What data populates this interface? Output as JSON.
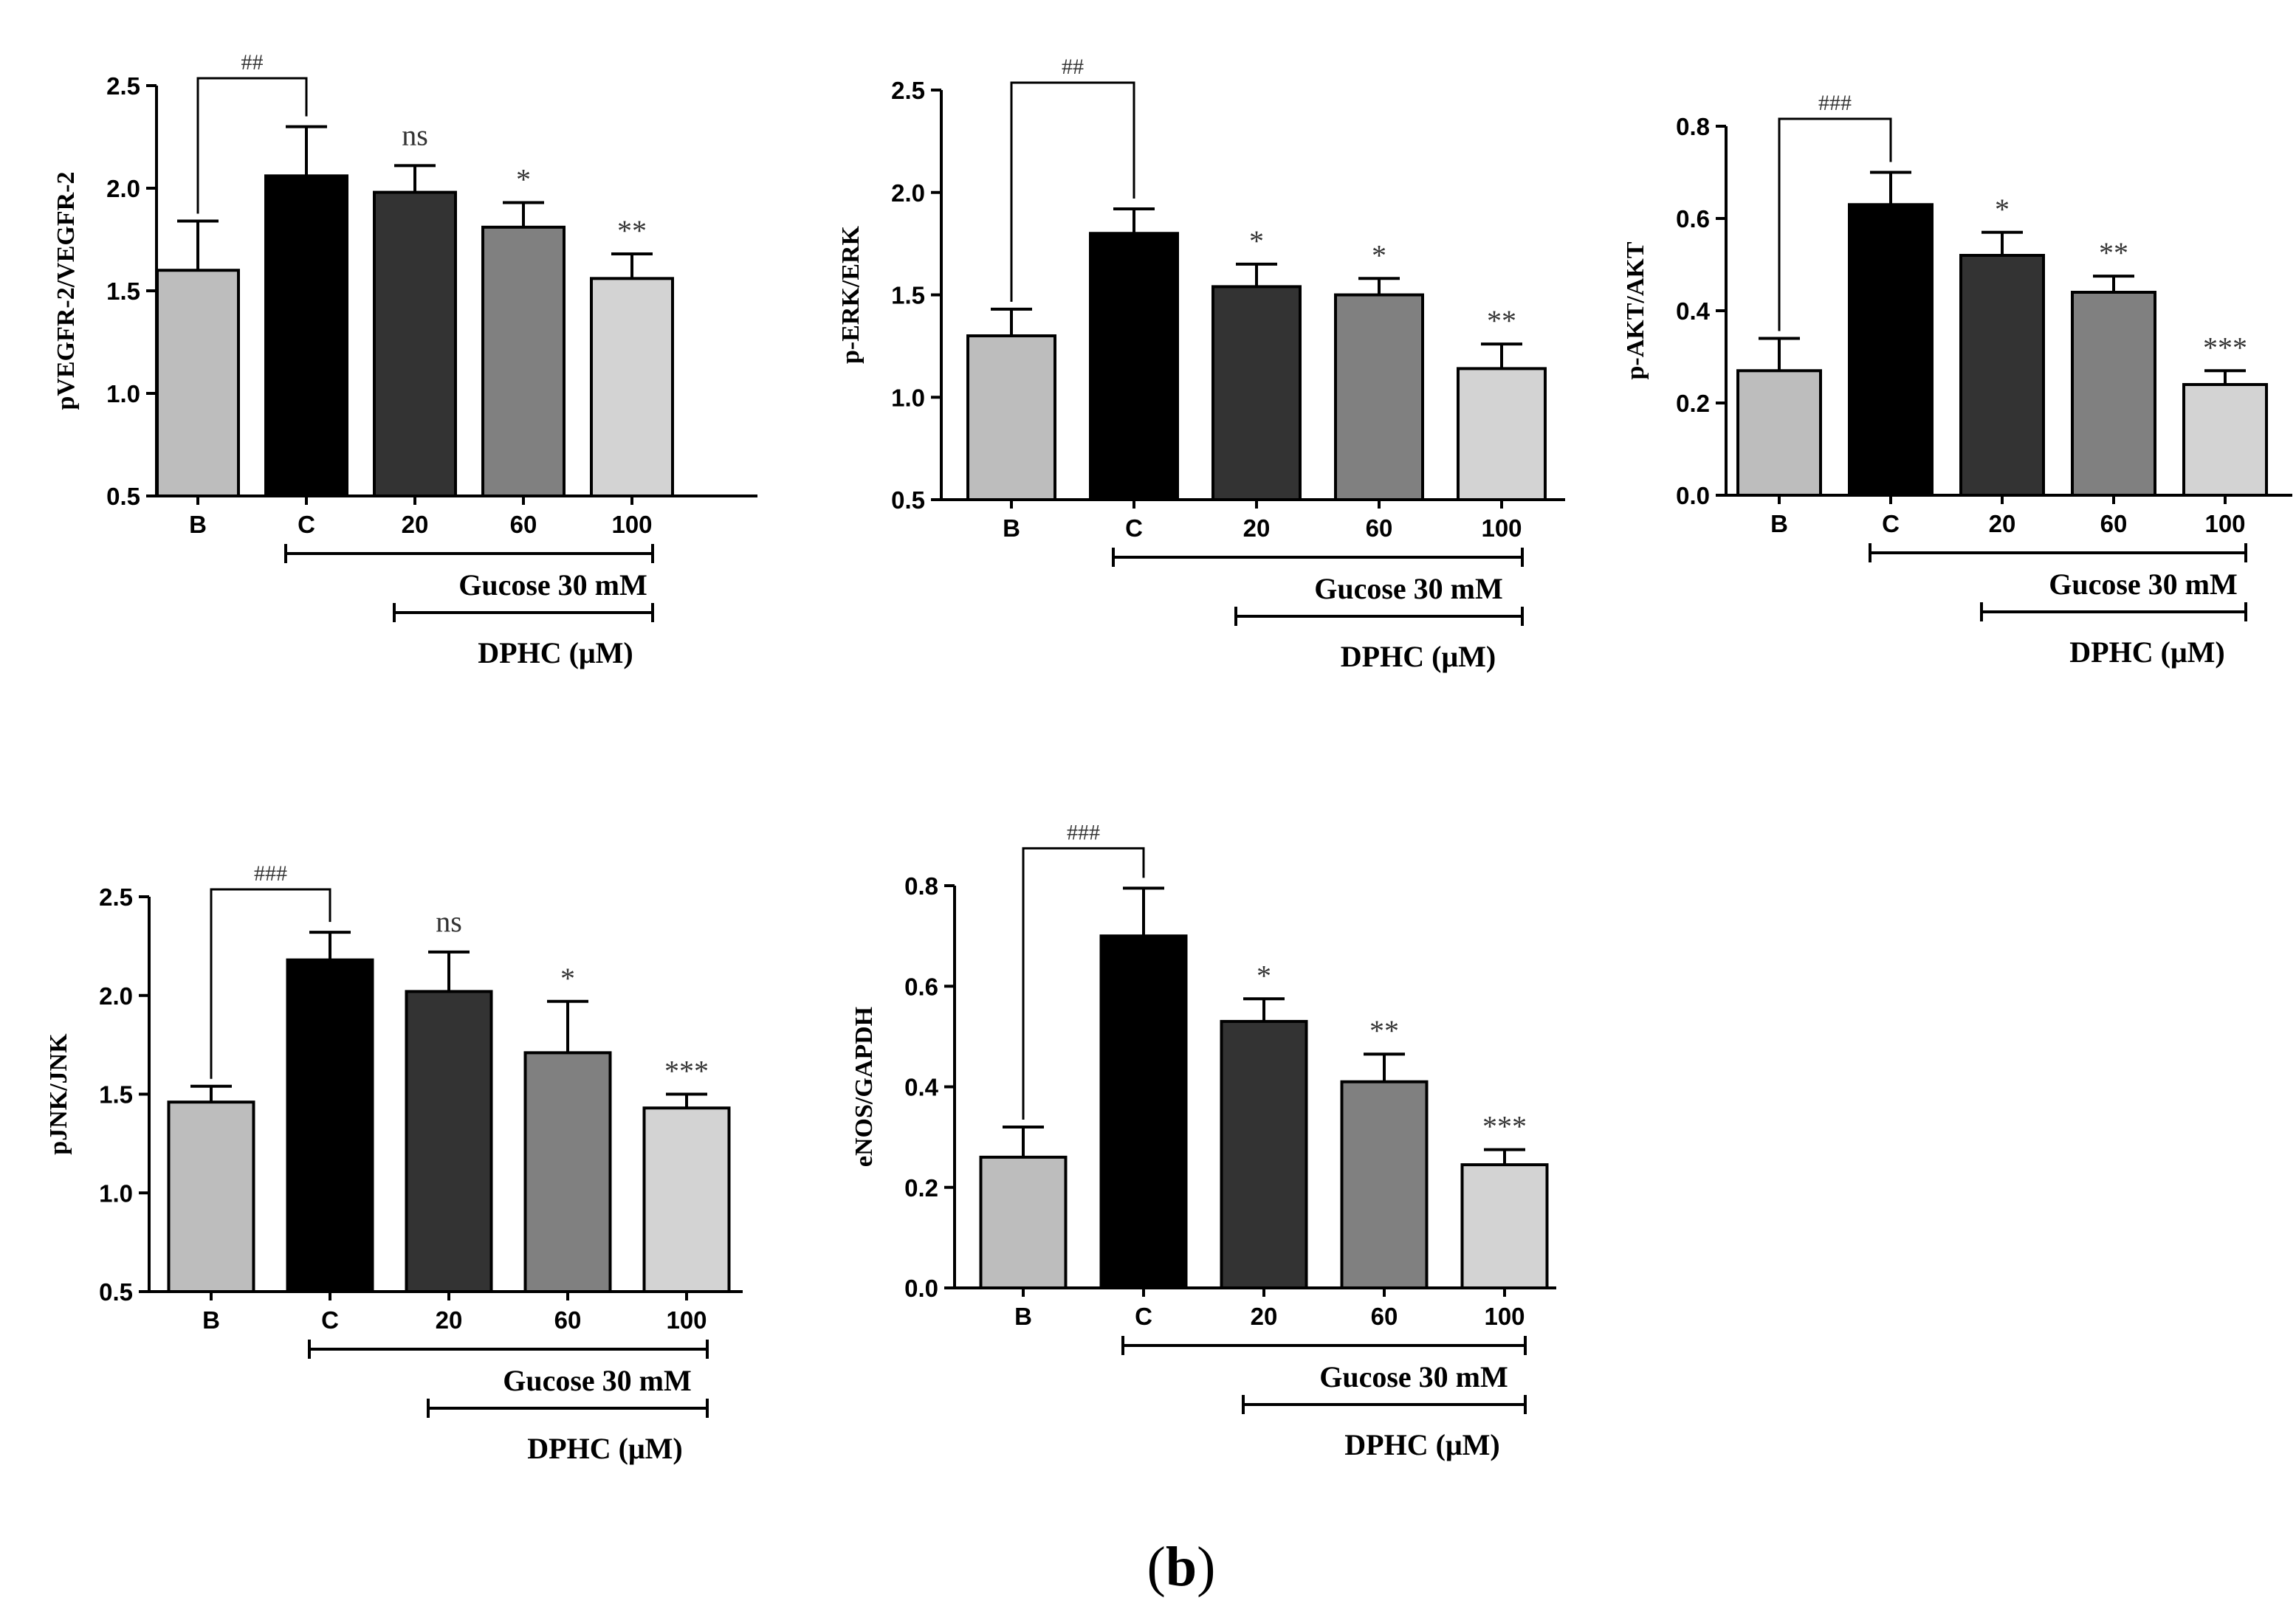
{
  "caption": {
    "open": "(",
    "letter": "b",
    "close": ")"
  },
  "chart_data": [
    {
      "type": "bar",
      "panel": "pVEGFR-2",
      "ylabel": "pVEGFR-2/VEGFR-2",
      "ylim": [
        0.5,
        2.5
      ],
      "yticks": [
        "0.5",
        "1.0",
        "1.5",
        "2.0",
        "2.5"
      ],
      "categories": [
        "B",
        "C",
        "20",
        "60",
        "100"
      ],
      "values": [
        1.6,
        2.06,
        1.98,
        1.81,
        1.56
      ],
      "errors": [
        0.24,
        0.24,
        0.13,
        0.12,
        0.12
      ],
      "bar_colors": [
        "#bdbdbd",
        "#000000",
        "#333333",
        "#808080",
        "#d3d3d3"
      ],
      "significance": [
        "",
        "",
        "ns",
        "*",
        "**"
      ],
      "bracket_label": "##",
      "group_labels": [
        "Gucose 30 mM",
        "DPHC (μM)"
      ]
    },
    {
      "type": "bar",
      "panel": "p-ERK",
      "ylabel": "p-ERK/ERK",
      "ylim": [
        0.5,
        2.5
      ],
      "yticks": [
        "0.5",
        "1.0",
        "1.5",
        "2.0",
        "2.5"
      ],
      "categories": [
        "B",
        "C",
        "20",
        "60",
        "100"
      ],
      "values": [
        1.3,
        1.8,
        1.54,
        1.5,
        1.14
      ],
      "errors": [
        0.13,
        0.12,
        0.11,
        0.08,
        0.12
      ],
      "bar_colors": [
        "#bdbdbd",
        "#000000",
        "#333333",
        "#808080",
        "#d3d3d3"
      ],
      "significance": [
        "",
        "",
        "*",
        "*",
        "**"
      ],
      "bracket_label": "##",
      "group_labels": [
        "Gucose 30 mM",
        "DPHC (μM)"
      ]
    },
    {
      "type": "bar",
      "panel": "p-AKT",
      "ylabel": "p-AKT/AKT",
      "ylim": [
        0.0,
        0.8
      ],
      "yticks": [
        "0.0",
        "0.2",
        "0.4",
        "0.6",
        "0.8"
      ],
      "categories": [
        "B",
        "C",
        "20",
        "60",
        "100"
      ],
      "values": [
        0.27,
        0.63,
        0.52,
        0.44,
        0.24
      ],
      "errors": [
        0.07,
        0.07,
        0.05,
        0.035,
        0.03
      ],
      "bar_colors": [
        "#bdbdbd",
        "#000000",
        "#333333",
        "#808080",
        "#d3d3d3"
      ],
      "significance": [
        "",
        "",
        "*",
        "**",
        "***"
      ],
      "bracket_label": "###",
      "group_labels": [
        "Gucose 30 mM",
        "DPHC (μM)"
      ]
    },
    {
      "type": "bar",
      "panel": "pJNK",
      "ylabel": "pJNK/JNK",
      "ylim": [
        0.5,
        2.5
      ],
      "yticks": [
        "0.5",
        "1.0",
        "1.5",
        "2.0",
        "2.5"
      ],
      "categories": [
        "B",
        "C",
        "20",
        "60",
        "100"
      ],
      "values": [
        1.46,
        2.18,
        2.02,
        1.71,
        1.43
      ],
      "errors": [
        0.08,
        0.14,
        0.2,
        0.26,
        0.07
      ],
      "bar_colors": [
        "#bdbdbd",
        "#000000",
        "#333333",
        "#808080",
        "#d3d3d3"
      ],
      "significance": [
        "",
        "",
        "ns",
        "*",
        "***"
      ],
      "bracket_label": "###",
      "group_labels": [
        "Gucose 30 mM",
        "DPHC (μM)"
      ]
    },
    {
      "type": "bar",
      "panel": "eNOS",
      "ylabel": "eNOS/GAPDH",
      "ylim": [
        0.0,
        0.8
      ],
      "yticks": [
        "0.0",
        "0.2",
        "0.4",
        "0.6",
        "0.8"
      ],
      "categories": [
        "B",
        "C",
        "20",
        "60",
        "100"
      ],
      "values": [
        0.26,
        0.7,
        0.53,
        0.41,
        0.245
      ],
      "errors": [
        0.06,
        0.095,
        0.045,
        0.055,
        0.03
      ],
      "bar_colors": [
        "#bdbdbd",
        "#000000",
        "#333333",
        "#808080",
        "#d3d3d3"
      ],
      "significance": [
        "",
        "",
        "*",
        "**",
        "***"
      ],
      "bracket_label": "###",
      "group_labels": [
        "Gucose 30 mM",
        "DPHC (μM)"
      ]
    }
  ]
}
